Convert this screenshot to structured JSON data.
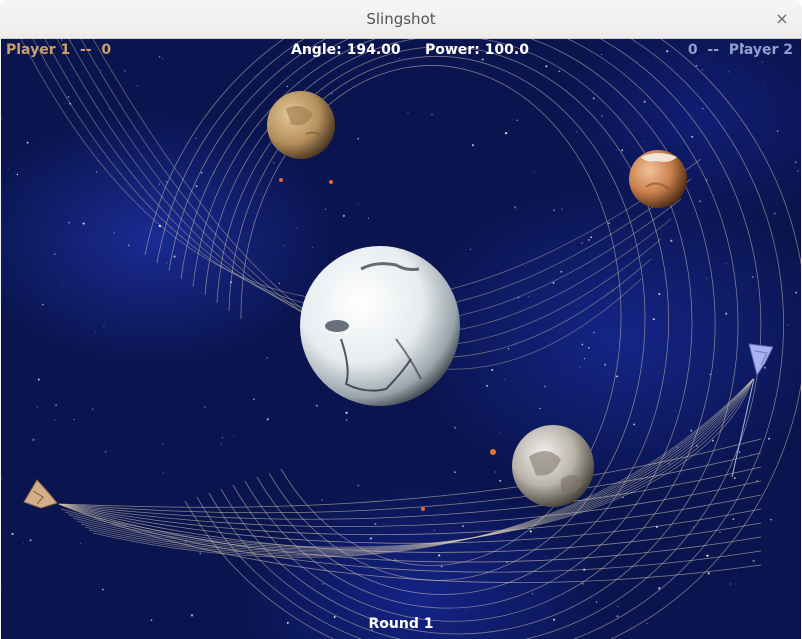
{
  "window": {
    "title": "Slingshot",
    "close_glyph": "×"
  },
  "hud": {
    "player1": "Player 1  --  0",
    "player2": "0  --  Player 2",
    "angle_power": "Angle: 194.00     Power: 100.0",
    "round": "Round 1"
  },
  "colors": {
    "space": "#0a1550",
    "player1": "#c9a06a",
    "player2": "#8f9fd0",
    "trail": "#d8cbb0"
  },
  "icons": {
    "player1_ship": "ship-icon",
    "player2_ship": "ship-icon",
    "close": "close-icon"
  }
}
